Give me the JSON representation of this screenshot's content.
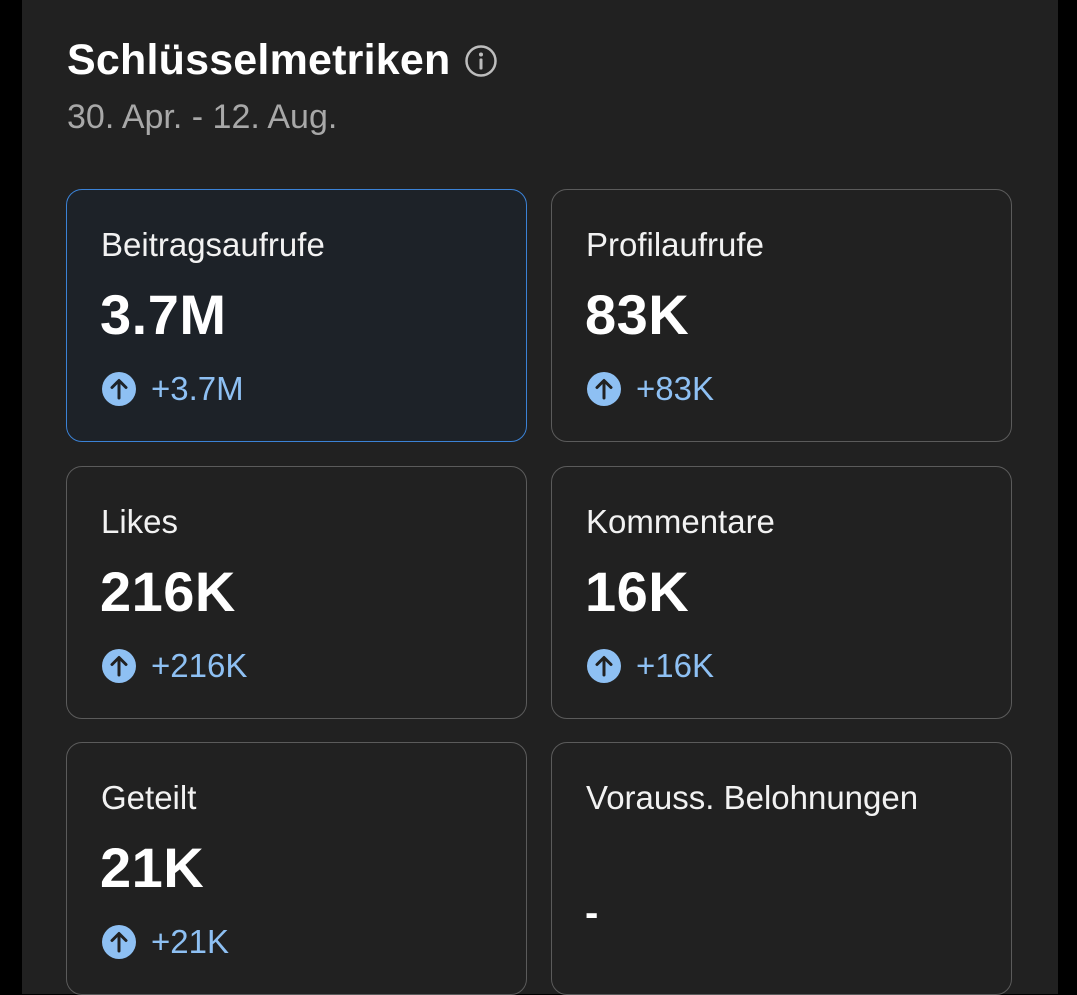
{
  "header": {
    "title": "Schlüsselmetriken",
    "date_range": "30. Apr. - 12. Aug."
  },
  "colors": {
    "accent": "#3b82d6",
    "change_positive": "#8ec0f3",
    "background": "#212121"
  },
  "metrics": [
    {
      "label": "Beitragsaufrufe",
      "value": "3.7M",
      "change": "+3.7M",
      "selected": true,
      "icon": "arrow-up-circle-icon"
    },
    {
      "label": "Profilaufrufe",
      "value": "83K",
      "change": "+83K",
      "selected": false,
      "icon": "arrow-up-circle-icon"
    },
    {
      "label": "Likes",
      "value": "216K",
      "change": "+216K",
      "selected": false,
      "icon": "arrow-up-circle-icon"
    },
    {
      "label": "Kommentare",
      "value": "16K",
      "change": "+16K",
      "selected": false,
      "icon": "arrow-up-circle-icon"
    },
    {
      "label": "Geteilt",
      "value": "21K",
      "change": "+21K",
      "selected": false,
      "icon": "arrow-up-circle-icon"
    },
    {
      "label": "Vorauss. Belohnungen",
      "value": "-",
      "change": null,
      "selected": false,
      "icon": null
    }
  ]
}
